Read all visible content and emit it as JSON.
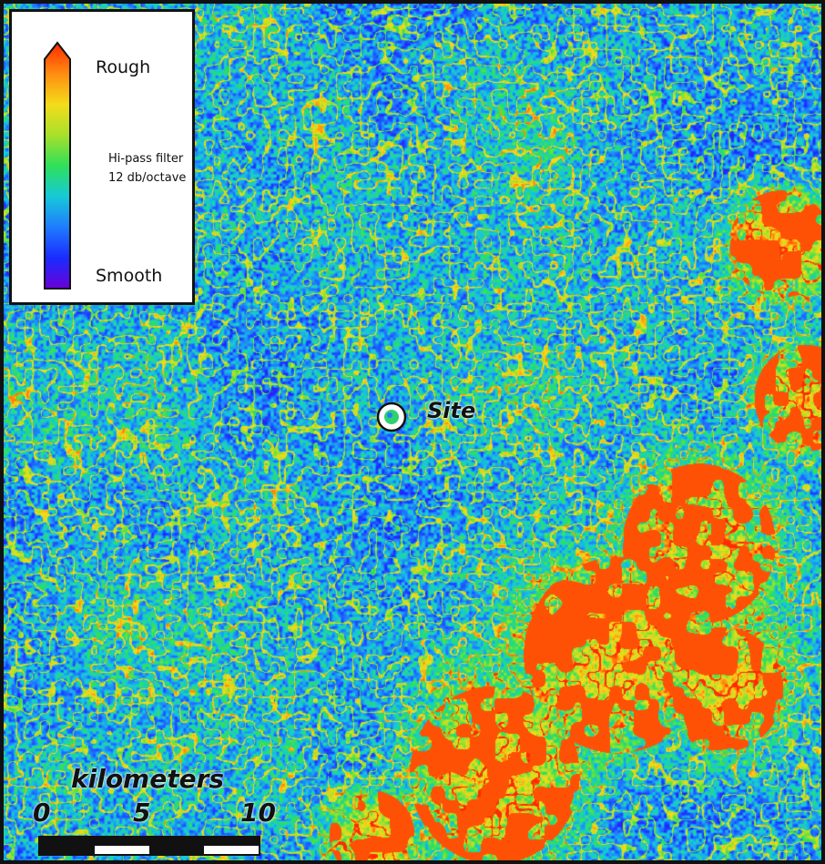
{
  "colors": {
    "ramp": [
      "#6a00d8",
      "#1a2cff",
      "#1f7cff",
      "#16c9d8",
      "#2fe05a",
      "#a8e02a",
      "#f4dc1a",
      "#ff8c10",
      "#ff2a00"
    ],
    "frame": "#111111",
    "scale_dark": "#111111",
    "scale_light": "#ffffff"
  },
  "legend": {
    "top_label": "Rough",
    "filter_line1": "Hi-pass filter",
    "filter_line2": "12 db/octave",
    "bottom_label": "Smooth"
  },
  "site": {
    "label": "Site"
  },
  "scale": {
    "title": "kilometers",
    "ticks": [
      "0",
      "5",
      "10"
    ]
  }
}
